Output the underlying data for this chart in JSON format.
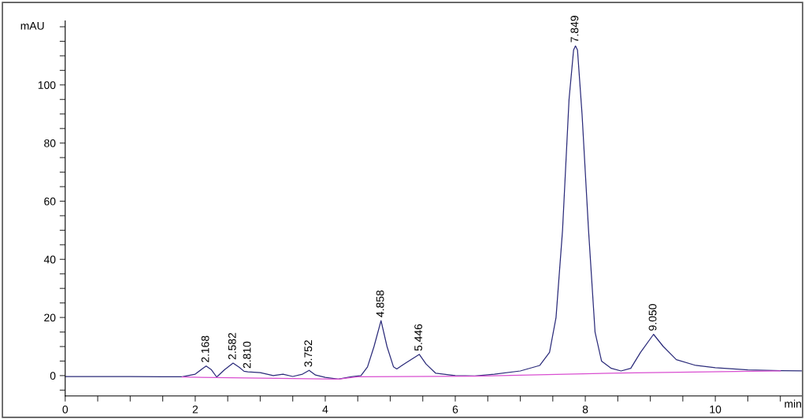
{
  "chart_data": {
    "type": "line",
    "xlabel": "min",
    "ylabel": "mAU",
    "xlim": [
      0,
      11.33
    ],
    "ylim": [
      -7,
      122
    ],
    "xticks": [
      0,
      {
        "value": 0.5,
        "label": null
      },
      {
        "value": 1,
        "label": null
      },
      {
        "value": 1.5,
        "label": null
      },
      2,
      {
        "value": 2.5,
        "label": null
      },
      {
        "value": 3,
        "label": null
      },
      {
        "value": 3.5,
        "label": null
      },
      4,
      {
        "value": 4.5,
        "label": null
      },
      {
        "value": 5,
        "label": null
      },
      {
        "value": 5.5,
        "label": null
      },
      6,
      {
        "value": 6.5,
        "label": null
      },
      {
        "value": 7,
        "label": null
      },
      {
        "value": 7.5,
        "label": null
      },
      8,
      {
        "value": 8.5,
        "label": null
      },
      {
        "value": 9,
        "label": null
      },
      {
        "value": 9.5,
        "label": null
      },
      10,
      {
        "value": 10.5,
        "label": null
      },
      {
        "value": 11,
        "label": null
      }
    ],
    "yticks": [
      {
        "value": -5,
        "label": null
      },
      0,
      {
        "value": 5,
        "label": null
      },
      {
        "value": 10,
        "label": null
      },
      {
        "value": 15,
        "label": null
      },
      20,
      {
        "value": 25,
        "label": null
      },
      {
        "value": 30,
        "label": null
      },
      {
        "value": 35,
        "label": null
      },
      40,
      {
        "value": 45,
        "label": null
      },
      {
        "value": 50,
        "label": null
      },
      {
        "value": 55,
        "label": null
      },
      60,
      {
        "value": 65,
        "label": null
      },
      {
        "value": 70,
        "label": null
      },
      {
        "value": 75,
        "label": null
      },
      80,
      {
        "value": 85,
        "label": null
      },
      {
        "value": 90,
        "label": null
      },
      {
        "value": 95,
        "label": null
      },
      100,
      {
        "value": 105,
        "label": null
      },
      {
        "value": 110,
        "label": null
      },
      {
        "value": 115,
        "label": null
      },
      {
        "value": 120,
        "label": null
      }
    ],
    "grid": false,
    "marker": "none",
    "line_style": "solid",
    "series": [
      {
        "color": "#2b2b7a",
        "x": [
          0,
          1.0,
          1.5,
          1.8,
          2.0,
          2.1,
          2.168,
          2.25,
          2.33,
          2.45,
          2.582,
          2.68,
          2.75,
          2.81,
          3.0,
          3.2,
          3.35,
          3.5,
          3.65,
          3.752,
          3.85,
          4.0,
          4.2,
          4.4,
          4.55,
          4.65,
          4.75,
          4.858,
          4.95,
          5.05,
          5.1,
          5.25,
          5.446,
          5.55,
          5.7,
          6.0,
          6.3,
          6.6,
          7.0,
          7.3,
          7.45,
          7.55,
          7.65,
          7.75,
          7.82,
          7.849,
          7.88,
          7.95,
          8.05,
          8.15,
          8.25,
          8.4,
          8.55,
          8.7,
          8.85,
          9.05,
          9.2,
          9.4,
          9.7,
          10.0,
          10.5,
          11.0,
          11.33
        ],
        "values": [
          -0.3,
          -0.3,
          -0.4,
          -0.4,
          0.5,
          2.2,
          3.3,
          2.0,
          -0.5,
          2.0,
          4.3,
          2.8,
          1.5,
          1.3,
          1.0,
          0.0,
          0.5,
          -0.3,
          0.5,
          1.8,
          0.2,
          -0.6,
          -1.2,
          -0.4,
          0.0,
          3,
          10,
          18.9,
          10,
          3,
          2.3,
          4.5,
          7.3,
          4,
          0.8,
          0.0,
          -0.1,
          0.5,
          1.6,
          3.5,
          8,
          20,
          50,
          95,
          112,
          113.4,
          112,
          90,
          50,
          15,
          5,
          2.5,
          1.6,
          2.5,
          8,
          14.2,
          10,
          5.5,
          3.5,
          2.7,
          2.0,
          1.7,
          1.6
        ]
      },
      {
        "color": "#d94fd1",
        "x": [
          1.8,
          4.2,
          4.5,
          6.3,
          8.55,
          11.0
        ],
        "values": [
          -0.5,
          -1.2,
          -0.4,
          -0.2,
          0.9,
          1.6
        ]
      }
    ],
    "annotations": [
      {
        "text": "2.168",
        "x": 2.168,
        "y": 3.3
      },
      {
        "text": "2.582",
        "x": 2.582,
        "y": 4.3
      },
      {
        "text": "2.810",
        "x": 2.81,
        "y": 1.3
      },
      {
        "text": "3.752",
        "x": 3.752,
        "y": 1.8
      },
      {
        "text": "4.858",
        "x": 4.858,
        "y": 18.9
      },
      {
        "text": "5.446",
        "x": 5.446,
        "y": 7.3
      },
      {
        "text": "7.849",
        "x": 7.849,
        "y": 113.4
      },
      {
        "text": "9.050",
        "x": 9.05,
        "y": 14.2
      }
    ]
  }
}
